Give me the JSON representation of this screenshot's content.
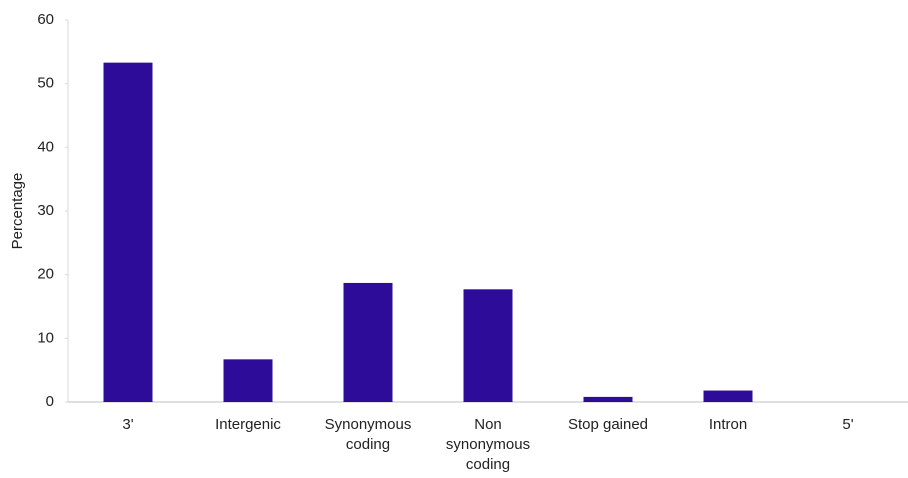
{
  "chart_data": {
    "type": "bar",
    "y_label": "Percentage",
    "categories": [
      "3'",
      "Intergenic",
      "Synonymous coding",
      "Non synonymous coding",
      "Stop gained",
      "Intron",
      "5'"
    ],
    "values": [
      53.3,
      6.7,
      18.7,
      17.7,
      0.8,
      1.8,
      0
    ],
    "color": "#2e0c9a",
    "ylim": [
      0,
      60
    ],
    "yticks": [
      0,
      10,
      20,
      30,
      40,
      50,
      60
    ],
    "grid": false
  }
}
